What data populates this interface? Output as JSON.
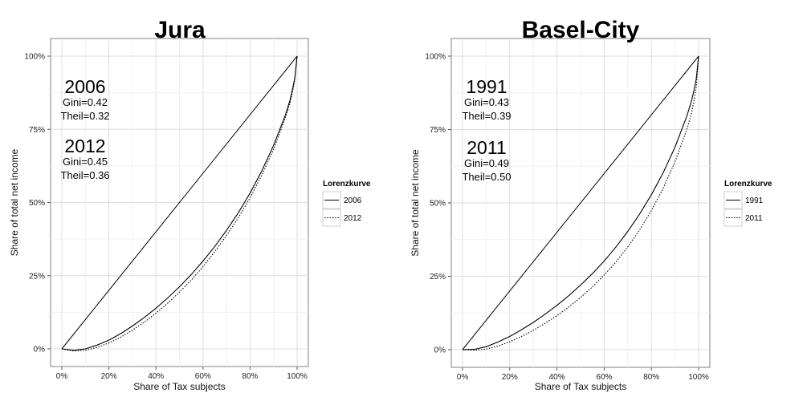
{
  "chart_data": [
    {
      "type": "line",
      "title": "Jura",
      "xlabel": "Share of Tax subjects",
      "ylabel": "Share of total net income",
      "xlim": [
        0,
        100
      ],
      "ylim": [
        0,
        100
      ],
      "x_ticks": [
        "0%",
        "20%",
        "40%",
        "60%",
        "80%",
        "100%"
      ],
      "y_ticks": [
        "0%",
        "25%",
        "50%",
        "75%",
        "100%"
      ],
      "grid": true,
      "legend": {
        "title": "Lorenzkurve",
        "position": "right"
      },
      "diagonal": {
        "x": [
          0,
          100
        ],
        "y": [
          0,
          100
        ]
      },
      "series": [
        {
          "name": "2006",
          "linetype": "solid",
          "x": [
            0,
            5,
            10,
            15,
            20,
            25,
            30,
            35,
            40,
            45,
            50,
            55,
            60,
            65,
            70,
            75,
            80,
            85,
            90,
            95,
            97,
            98,
            99,
            100
          ],
          "y": [
            0,
            -0.5,
            0.0,
            1.3,
            3.0,
            5.2,
            7.8,
            10.7,
            13.9,
            17.4,
            21.2,
            25.4,
            30.0,
            35.0,
            40.5,
            46.5,
            53.2,
            60.8,
            69.5,
            79.8,
            85.0,
            88.5,
            92.5,
            100
          ]
        },
        {
          "name": "2012",
          "linetype": "dotted",
          "x": [
            0,
            5,
            10,
            15,
            20,
            25,
            30,
            35,
            40,
            45,
            50,
            55,
            60,
            65,
            70,
            75,
            80,
            85,
            90,
            95,
            97,
            98,
            99,
            100
          ],
          "y": [
            0,
            -0.7,
            -0.5,
            0.5,
            2.0,
            4.0,
            6.4,
            9.1,
            12.2,
            15.6,
            19.4,
            23.5,
            28.1,
            33.2,
            38.7,
            44.8,
            51.6,
            59.3,
            68.2,
            78.8,
            84.0,
            87.6,
            91.8,
            100
          ]
        }
      ],
      "annotations": [
        {
          "label": "2006",
          "lines": [
            "Gini=0.42",
            "Theil=0.32"
          ]
        },
        {
          "label": "2012",
          "lines": [
            "Gini=0.45",
            "Theil=0.36"
          ]
        }
      ]
    },
    {
      "type": "line",
      "title": "Basel-City",
      "xlabel": "Share of Tax subjects",
      "ylabel": "Share of total net income",
      "xlim": [
        0,
        100
      ],
      "ylim": [
        0,
        100
      ],
      "x_ticks": [
        "0%",
        "20%",
        "40%",
        "60%",
        "80%",
        "100%"
      ],
      "y_ticks": [
        "0%",
        "25%",
        "50%",
        "75%",
        "100%"
      ],
      "grid": true,
      "legend": {
        "title": "Lorenzkurve",
        "position": "right"
      },
      "diagonal": {
        "x": [
          0,
          100
        ],
        "y": [
          0,
          100
        ]
      },
      "series": [
        {
          "name": "1991",
          "linetype": "solid",
          "x": [
            0,
            5,
            10,
            15,
            20,
            25,
            30,
            35,
            40,
            45,
            50,
            55,
            60,
            65,
            70,
            75,
            80,
            85,
            90,
            95,
            97,
            98,
            99,
            100
          ],
          "y": [
            0,
            0.1,
            1.0,
            2.6,
            4.5,
            6.8,
            9.3,
            12.1,
            15.1,
            18.4,
            22.0,
            25.9,
            30.2,
            35.0,
            40.3,
            46.2,
            52.8,
            60.3,
            69.0,
            79.5,
            84.8,
            88.2,
            92.3,
            100
          ]
        },
        {
          "name": "2011",
          "linetype": "dotted",
          "x": [
            0,
            5,
            10,
            15,
            20,
            25,
            30,
            35,
            40,
            45,
            50,
            55,
            60,
            65,
            70,
            75,
            80,
            85,
            90,
            95,
            97,
            98,
            99,
            100
          ],
          "y": [
            0,
            -0.2,
            0.2,
            1.2,
            2.7,
            4.5,
            6.6,
            9.0,
            11.6,
            14.5,
            17.8,
            21.4,
            25.4,
            29.9,
            35.0,
            40.8,
            47.4,
            55.0,
            64.0,
            75.0,
            80.6,
            84.5,
            89.5,
            100
          ]
        }
      ],
      "annotations": [
        {
          "label": "1991",
          "lines": [
            "Gini=0.43",
            "Theil=0.39"
          ]
        },
        {
          "label": "2011",
          "lines": [
            "Gini=0.49",
            "Theil=0.50"
          ]
        }
      ]
    }
  ]
}
